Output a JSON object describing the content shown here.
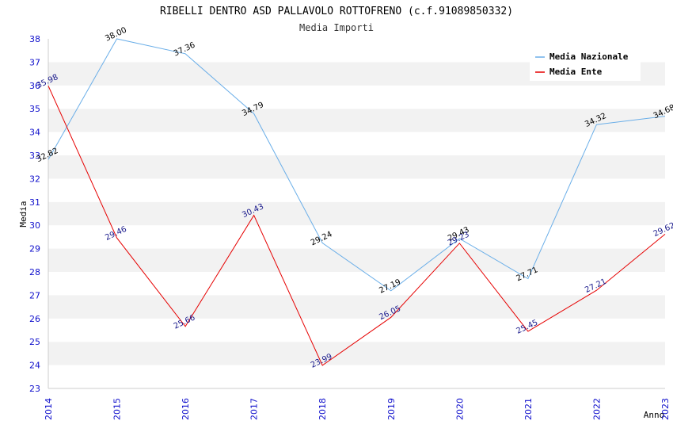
{
  "chart_data": {
    "type": "line",
    "title": "RIBELLI DENTRO ASD PALLAVOLO ROTTOFRENO (c.f.91089850332)",
    "subtitle": "Media Importi",
    "xlabel": "Anno",
    "ylabel": "Media",
    "x": [
      "2014",
      "2015",
      "2016",
      "2017",
      "2018",
      "2019",
      "2020",
      "2021",
      "2022",
      "2023"
    ],
    "ylim": [
      23,
      38
    ],
    "yticks": [
      "23",
      "24",
      "25",
      "26",
      "27",
      "28",
      "29",
      "30",
      "31",
      "32",
      "33",
      "34",
      "35",
      "36",
      "37",
      "38"
    ],
    "grid": "horizontal alternating bands",
    "legend_position": "top-right",
    "series": [
      {
        "name": "Media Nazionale",
        "color": "#6aaee8",
        "label_color": "#000000",
        "values": [
          32.82,
          38.0,
          37.36,
          34.79,
          29.24,
          27.19,
          29.43,
          27.71,
          34.32,
          34.68
        ],
        "labels": [
          "32.82",
          "38.00",
          "37.36",
          "34.79",
          "29.24",
          "27.19",
          "29.43",
          "27.71",
          "34.32",
          "34.68"
        ]
      },
      {
        "name": "Media Ente",
        "color": "#e60000",
        "label_color": "#1a1a8c",
        "values": [
          35.98,
          29.46,
          25.66,
          30.43,
          23.99,
          26.05,
          29.23,
          25.45,
          27.21,
          29.62
        ],
        "labels": [
          "35.98",
          "29.46",
          "25.66",
          "30.43",
          "23.99",
          "26.05",
          "29.23",
          "25.45",
          "27.21",
          "29.62"
        ]
      }
    ]
  }
}
